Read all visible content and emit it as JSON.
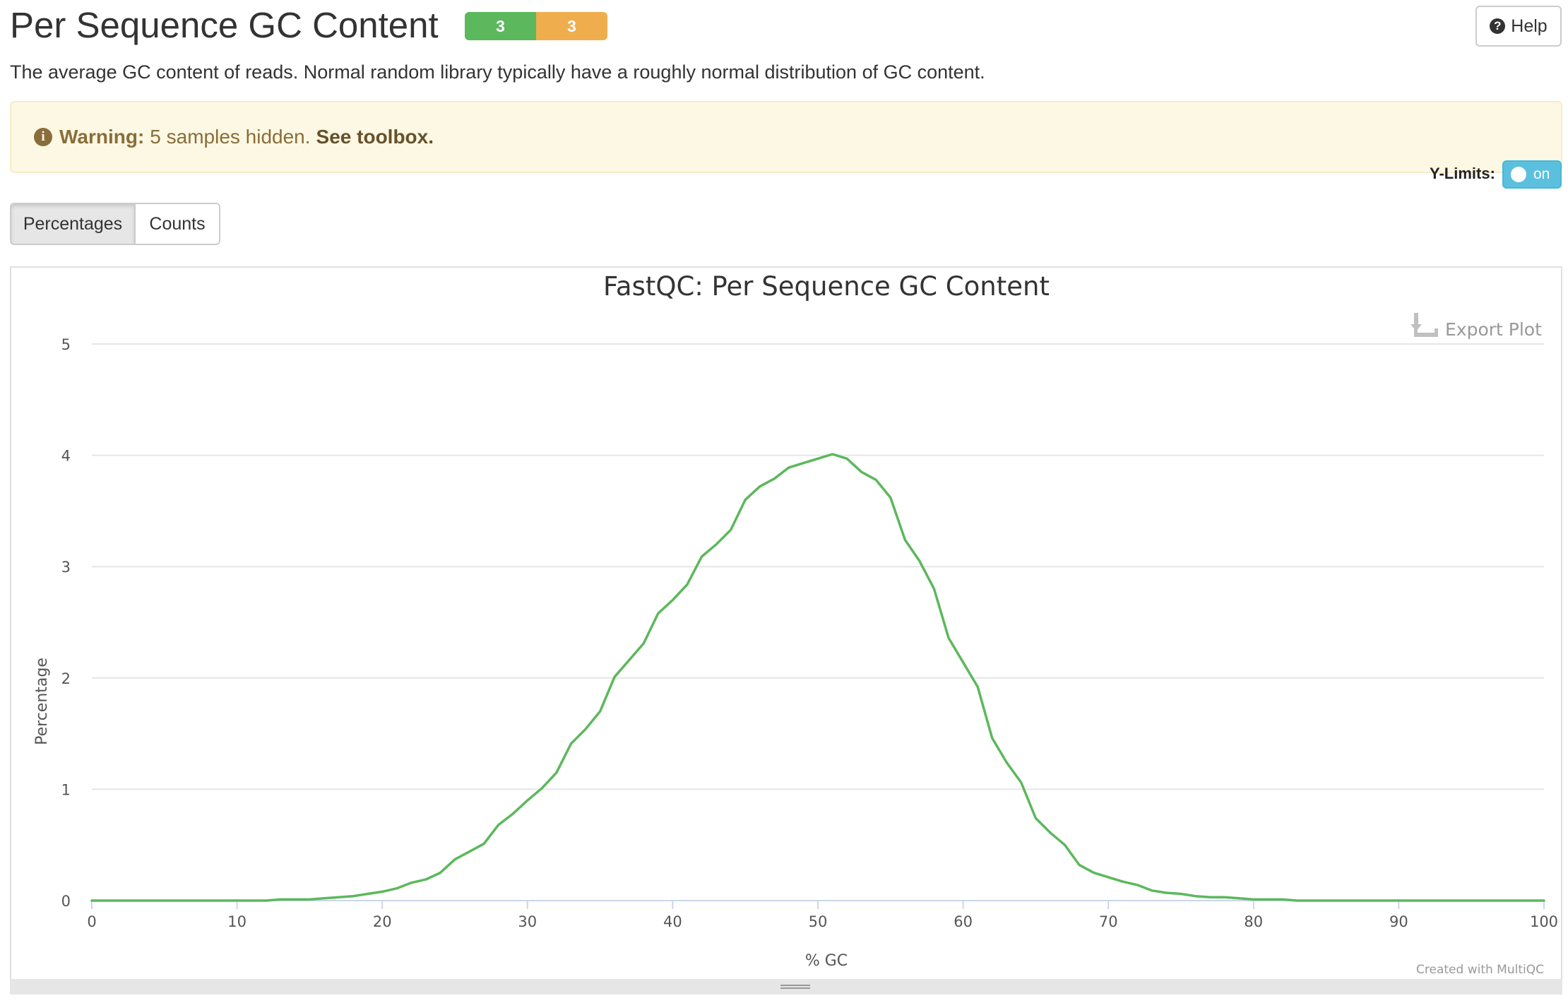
{
  "header": {
    "title": "Per Sequence GC Content",
    "status": [
      {
        "count": "3",
        "color": "#5cb85c"
      },
      {
        "count": "3",
        "color": "#f0ad4e"
      }
    ],
    "help_label": "Help"
  },
  "description": "The average GC content of reads. Normal random library typically have a roughly normal distribution of GC content.",
  "warning": {
    "strong": "Warning:",
    "text": "5 samples hidden.",
    "link": "See toolbox."
  },
  "ylimits": {
    "label": "Y-Limits:",
    "state": "on"
  },
  "view_buttons": {
    "percentages": "Percentages",
    "counts": "Counts",
    "active": "Percentages"
  },
  "plot": {
    "export_label": "Export Plot",
    "credit": "Created with MultiQC"
  },
  "chart_data": {
    "type": "line",
    "title": "FastQC: Per Sequence GC Content",
    "xlabel": "% GC",
    "ylabel": "Percentage",
    "xlim": [
      0,
      100
    ],
    "ylim": [
      0,
      5
    ],
    "xticks": [
      0,
      10,
      20,
      30,
      40,
      50,
      60,
      70,
      80,
      90,
      100
    ],
    "yticks": [
      0,
      1,
      2,
      3,
      4,
      5
    ],
    "grid": true,
    "series": [
      {
        "color": "#5cb85c",
        "x": [
          0,
          1,
          2,
          3,
          4,
          5,
          6,
          7,
          8,
          9,
          10,
          11,
          12,
          13,
          14,
          15,
          16,
          17,
          18,
          19,
          20,
          21,
          22,
          23,
          24,
          25,
          26,
          27,
          28,
          29,
          30,
          31,
          32,
          33,
          34,
          35,
          36,
          37,
          38,
          39,
          40,
          41,
          42,
          43,
          44,
          45,
          46,
          47,
          48,
          49,
          50,
          51,
          52,
          53,
          54,
          55,
          56,
          57,
          58,
          59,
          60,
          61,
          62,
          63,
          64,
          65,
          66,
          67,
          68,
          69,
          70,
          71,
          72,
          73,
          74,
          75,
          76,
          77,
          78,
          79,
          80,
          81,
          82,
          83,
          84,
          85,
          86,
          87,
          88,
          89,
          90,
          91,
          92,
          93,
          94,
          95,
          96,
          97,
          98,
          99,
          100
        ],
        "values": [
          0.0,
          0.0,
          0.0,
          0.0,
          0.0,
          0.0,
          0.0,
          0.0,
          0.0,
          0.0,
          0.0,
          0.0,
          0.0,
          0.01,
          0.01,
          0.01,
          0.02,
          0.03,
          0.04,
          0.06,
          0.08,
          0.11,
          0.16,
          0.19,
          0.25,
          0.37,
          0.44,
          0.51,
          0.68,
          0.78,
          0.9,
          1.01,
          1.15,
          1.41,
          1.54,
          1.7,
          2.01,
          2.16,
          2.31,
          2.58,
          2.7,
          2.84,
          3.09,
          3.2,
          3.33,
          3.6,
          3.72,
          3.79,
          3.89,
          3.93,
          3.97,
          4.01,
          3.97,
          3.85,
          3.78,
          3.62,
          3.24,
          3.05,
          2.8,
          2.36,
          2.14,
          1.92,
          1.46,
          1.24,
          1.06,
          0.74,
          0.61,
          0.5,
          0.32,
          0.25,
          0.21,
          0.17,
          0.14,
          0.09,
          0.07,
          0.06,
          0.04,
          0.03,
          0.03,
          0.02,
          0.01,
          0.01,
          0.01,
          0.0,
          0.0,
          0.0,
          0.0,
          0.0,
          0.0,
          0.0,
          0.0,
          0.0,
          0.0,
          0.0,
          0.0,
          0.0,
          0.0,
          0.0,
          0.0,
          0.0,
          0.0
        ]
      }
    ]
  }
}
